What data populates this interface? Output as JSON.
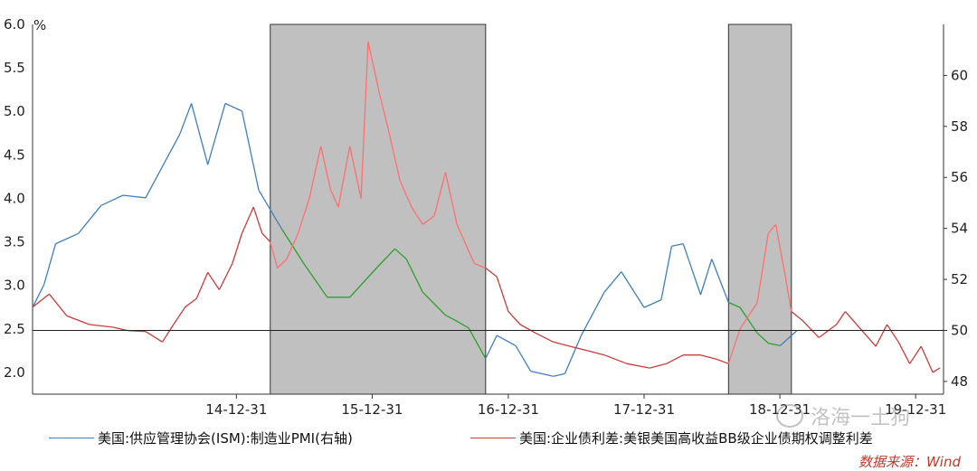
{
  "chart_data": {
    "type": "line",
    "left_axis": {
      "unit": "%",
      "ticks": [
        "6.0",
        "5.5",
        "5.0",
        "4.5",
        "4.0",
        "3.5",
        "3.0",
        "2.5",
        "2.0"
      ],
      "range": [
        1.75,
        6.0
      ]
    },
    "right_axis": {
      "ticks": [
        "60",
        "58",
        "56",
        "54",
        "52",
        "50",
        "48"
      ],
      "range": [
        47.5,
        62.0
      ]
    },
    "x_ticks": [
      "14-12-31",
      "15-12-31",
      "16-12-31",
      "17-12-31",
      "18-12-31",
      "19-12-31"
    ],
    "x_range": [
      "2013-07-01",
      "2020-03-15"
    ],
    "reference_line": {
      "axis": "right",
      "value": 50
    },
    "shaded_periods": [
      {
        "start": "2015-04-01",
        "end": "2016-10-31"
      },
      {
        "start": "2018-08-15",
        "end": "2019-01-31"
      }
    ],
    "series": [
      {
        "name": "美国:供应管理协会(ISM):制造业PMI(右轴)",
        "axis": "right",
        "color": "#3f7fbf",
        "shaded_color": "#2ca02c",
        "points": [
          [
            "2013-07-01",
            50.9
          ],
          [
            "2013-08-01",
            51.8
          ],
          [
            "2013-09-01",
            53.4
          ],
          [
            "2013-11-01",
            53.8
          ],
          [
            "2014-01-01",
            54.9
          ],
          [
            "2014-03-01",
            55.3
          ],
          [
            "2014-05-01",
            55.2
          ],
          [
            "2014-08-01",
            57.7
          ],
          [
            "2014-09-01",
            58.9
          ],
          [
            "2014-10-15",
            56.5
          ],
          [
            "2014-12-01",
            58.9
          ],
          [
            "2015-01-15",
            58.6
          ],
          [
            "2015-03-01",
            55.5
          ],
          [
            "2015-05-01",
            54.0
          ],
          [
            "2015-07-01",
            52.6
          ],
          [
            "2015-09-01",
            51.3
          ],
          [
            "2015-11-01",
            51.3
          ],
          [
            "2016-01-15",
            52.5
          ],
          [
            "2016-03-01",
            53.2
          ],
          [
            "2016-04-01",
            52.8
          ],
          [
            "2016-05-15",
            51.5
          ],
          [
            "2016-07-15",
            50.6
          ],
          [
            "2016-08-10",
            50.4
          ],
          [
            "2016-09-15",
            50.1
          ],
          [
            "2016-10-31",
            48.9
          ],
          [
            "2016-11-30",
            49.8
          ],
          [
            "2017-01-20",
            49.4
          ],
          [
            "2017-03-01",
            48.4
          ],
          [
            "2017-05-01",
            48.2
          ],
          [
            "2017-06-01",
            48.3
          ],
          [
            "2017-07-15",
            49.8
          ],
          [
            "2017-09-15",
            51.5
          ],
          [
            "2017-10-31",
            52.3
          ],
          [
            "2017-12-31",
            50.9
          ],
          [
            "2018-02-15",
            51.2
          ],
          [
            "2018-03-15",
            53.3
          ],
          [
            "2018-04-15",
            53.4
          ],
          [
            "2018-06-01",
            51.4
          ],
          [
            "2018-07-01",
            52.8
          ],
          [
            "2018-08-15",
            51.1
          ],
          [
            "2018-09-15",
            50.9
          ],
          [
            "2018-10-31",
            49.9
          ],
          [
            "2018-11-30",
            49.5
          ],
          [
            "2019-01-01",
            49.4
          ],
          [
            "2019-02-15",
            50.0
          ]
        ]
      },
      {
        "name": "美国:企业债利差:美银美国高收益BB级企业债期权调整利差",
        "axis": "left",
        "color": "#cc3b3b",
        "shaded_color": "#ff6f6f",
        "points": [
          [
            "2013-07-01",
            2.75
          ],
          [
            "2013-08-15",
            2.9
          ],
          [
            "2013-10-01",
            2.65
          ],
          [
            "2013-12-01",
            2.55
          ],
          [
            "2014-02-01",
            2.52
          ],
          [
            "2014-03-15",
            2.48
          ],
          [
            "2014-05-01",
            2.47
          ],
          [
            "2014-06-15",
            2.35
          ],
          [
            "2014-07-15",
            2.55
          ],
          [
            "2014-08-15",
            2.75
          ],
          [
            "2014-09-15",
            2.85
          ],
          [
            "2014-10-15",
            3.15
          ],
          [
            "2014-11-15",
            2.95
          ],
          [
            "2014-12-20",
            3.25
          ],
          [
            "2015-01-15",
            3.6
          ],
          [
            "2015-02-15",
            3.9
          ],
          [
            "2015-03-10",
            3.6
          ],
          [
            "2015-04-01",
            3.5
          ],
          [
            "2015-04-20",
            3.2
          ],
          [
            "2015-05-15",
            3.3
          ],
          [
            "2015-06-15",
            3.6
          ],
          [
            "2015-07-15",
            4.0
          ],
          [
            "2015-08-15",
            4.6
          ],
          [
            "2015-09-10",
            4.1
          ],
          [
            "2015-10-01",
            3.9
          ],
          [
            "2015-11-01",
            4.6
          ],
          [
            "2015-12-01",
            4.0
          ],
          [
            "2015-12-20",
            5.8
          ],
          [
            "2016-01-20",
            5.2
          ],
          [
            "2016-02-12",
            4.8
          ],
          [
            "2016-03-15",
            4.2
          ],
          [
            "2016-04-15",
            3.9
          ],
          [
            "2016-05-15",
            3.7
          ],
          [
            "2016-06-15",
            3.8
          ],
          [
            "2016-07-15",
            4.3
          ],
          [
            "2016-08-15",
            3.7
          ],
          [
            "2016-09-15",
            3.4
          ],
          [
            "2016-10-01",
            3.25
          ],
          [
            "2016-10-31",
            3.2
          ],
          [
            "2016-11-30",
            3.1
          ],
          [
            "2016-12-31",
            2.7
          ],
          [
            "2017-02-01",
            2.55
          ],
          [
            "2017-03-15",
            2.45
          ],
          [
            "2017-05-01",
            2.35
          ],
          [
            "2017-06-15",
            2.3
          ],
          [
            "2017-08-01",
            2.25
          ],
          [
            "2017-09-15",
            2.2
          ],
          [
            "2017-11-15",
            2.1
          ],
          [
            "2018-01-15",
            2.05
          ],
          [
            "2018-03-01",
            2.1
          ],
          [
            "2018-04-15",
            2.2
          ],
          [
            "2018-06-01",
            2.2
          ],
          [
            "2018-07-15",
            2.15
          ],
          [
            "2018-08-15",
            2.1
          ],
          [
            "2018-09-15",
            2.5
          ],
          [
            "2018-10-31",
            2.8
          ],
          [
            "2018-11-30",
            3.6
          ],
          [
            "2018-12-20",
            3.7
          ],
          [
            "2019-01-15",
            3.1
          ],
          [
            "2019-01-31",
            2.7
          ],
          [
            "2019-03-01",
            2.6
          ],
          [
            "2019-04-15",
            2.4
          ],
          [
            "2019-06-01",
            2.55
          ],
          [
            "2019-06-25",
            2.7
          ],
          [
            "2019-08-15",
            2.45
          ],
          [
            "2019-09-15",
            2.3
          ],
          [
            "2019-10-15",
            2.55
          ],
          [
            "2019-11-15",
            2.35
          ],
          [
            "2019-12-15",
            2.1
          ],
          [
            "2020-01-15",
            2.3
          ],
          [
            "2020-02-15",
            2.0
          ],
          [
            "2020-03-05",
            2.05
          ]
        ]
      }
    ],
    "legend": {
      "placement": "bottom"
    },
    "source": "数据来源：Wind"
  },
  "watermark": "洛海一土狗"
}
